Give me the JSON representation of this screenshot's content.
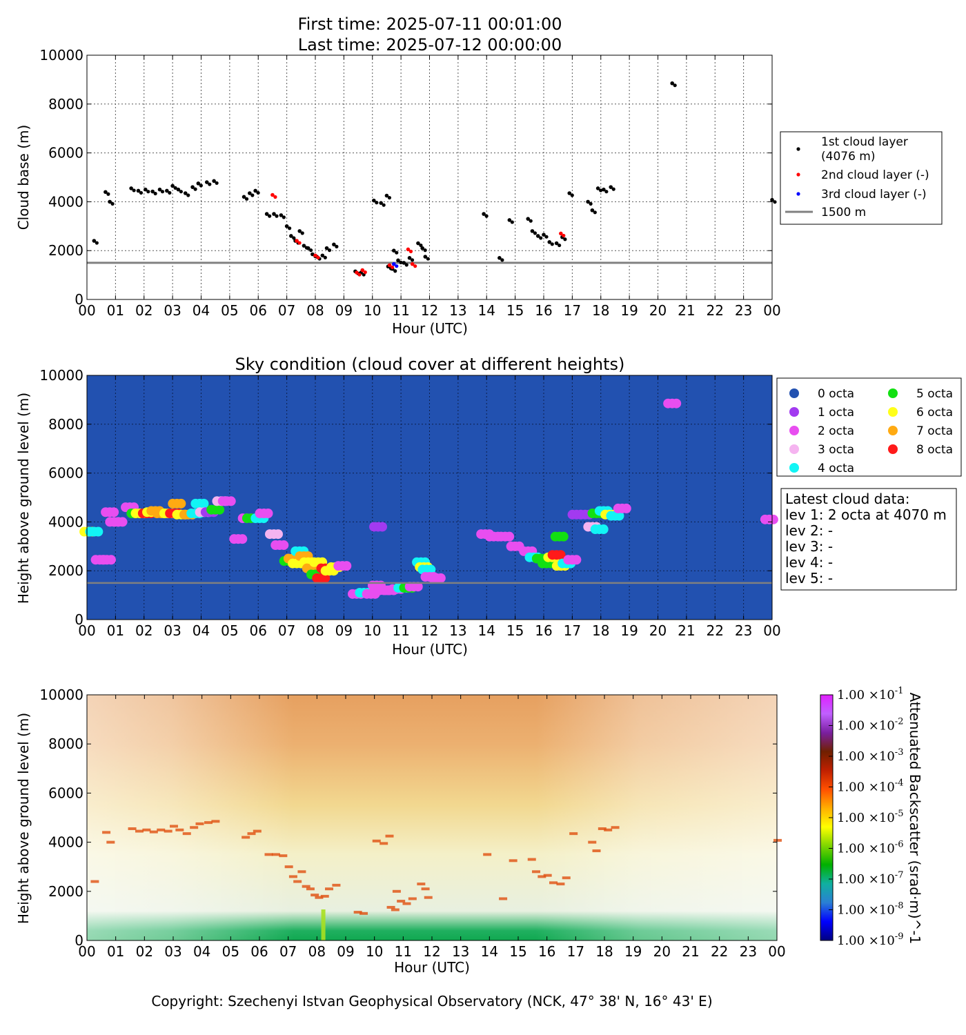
{
  "header": {
    "first_time": "First time: 2025-07-11 00:01:00",
    "last_time": "Last time: 2025-07-12 00:00:00"
  },
  "footer": {
    "copyright": "Copyright: Szechenyi Istvan Geophysical Observatory (NCK, 47° 38' N, 16° 43' E)"
  },
  "chart_data": [
    {
      "type": "scatter",
      "title": "",
      "xlabel": "Hour (UTC)",
      "ylabel": "Cloud base (m)",
      "xlim": [
        0,
        24
      ],
      "ylim": [
        0,
        10000
      ],
      "xticks": [
        "00",
        "01",
        "02",
        "03",
        "04",
        "05",
        "06",
        "07",
        "08",
        "09",
        "10",
        "11",
        "12",
        "13",
        "14",
        "15",
        "16",
        "17",
        "18",
        "19",
        "20",
        "21",
        "22",
        "23",
        "00"
      ],
      "yticks": [
        0,
        2000,
        4000,
        6000,
        8000,
        10000
      ],
      "grid": true,
      "legend_position": "right",
      "legend": [
        "1st cloud layer",
        "(4076 m)",
        "2nd cloud layer (-)",
        "3rd cloud layer (-)",
        "1500 m"
      ],
      "reference_line": {
        "y": 1500,
        "color": "#808080"
      },
      "series": [
        {
          "name": "1st cloud layer (4076 m)",
          "color": "#000000",
          "points": [
            [
              0.25,
              2400
            ],
            [
              0.65,
              4400
            ],
            [
              0.8,
              4000
            ],
            [
              1.55,
              4550
            ],
            [
              1.8,
              4450
            ],
            [
              2.05,
              4500
            ],
            [
              2.3,
              4420
            ],
            [
              2.55,
              4500
            ],
            [
              2.8,
              4450
            ],
            [
              3.0,
              4650
            ],
            [
              3.2,
              4500
            ],
            [
              3.45,
              4350
            ],
            [
              3.7,
              4600
            ],
            [
              3.9,
              4750
            ],
            [
              4.2,
              4800
            ],
            [
              4.45,
              4850
            ],
            [
              5.5,
              4200
            ],
            [
              5.7,
              4350
            ],
            [
              5.9,
              4450
            ],
            [
              6.3,
              3500
            ],
            [
              6.55,
              3500
            ],
            [
              6.8,
              3450
            ],
            [
              7.0,
              3000
            ],
            [
              7.15,
              2600
            ],
            [
              7.3,
              2400
            ],
            [
              7.45,
              2800
            ],
            [
              7.6,
              2200
            ],
            [
              7.75,
              2100
            ],
            [
              7.9,
              1850
            ],
            [
              8.05,
              1750
            ],
            [
              8.25,
              1800
            ],
            [
              8.4,
              2100
            ],
            [
              8.65,
              2250
            ],
            [
              9.4,
              1150
            ],
            [
              9.6,
              1100
            ],
            [
              10.05,
              4050
            ],
            [
              10.3,
              3950
            ],
            [
              10.5,
              4250
            ],
            [
              10.55,
              1350
            ],
            [
              10.7,
              1250
            ],
            [
              10.9,
              1600
            ],
            [
              10.75,
              2000
            ],
            [
              11.1,
              1500
            ],
            [
              11.3,
              1700
            ],
            [
              11.6,
              2300
            ],
            [
              11.75,
              2100
            ],
            [
              11.85,
              1750
            ],
            [
              13.9,
              3500
            ],
            [
              14.45,
              1700
            ],
            [
              14.8,
              3250
            ],
            [
              15.45,
              3300
            ],
            [
              15.6,
              2800
            ],
            [
              15.8,
              2600
            ],
            [
              16.0,
              2650
            ],
            [
              16.2,
              2350
            ],
            [
              16.45,
              2300
            ],
            [
              16.65,
              2550
            ],
            [
              16.9,
              4350
            ],
            [
              17.55,
              4000
            ],
            [
              17.7,
              3650
            ],
            [
              17.9,
              4550
            ],
            [
              18.1,
              4500
            ],
            [
              18.35,
              4600
            ],
            [
              20.5,
              8850
            ],
            [
              24.0,
              4076
            ]
          ]
        },
        {
          "name": "2nd cloud layer (-)",
          "color": "#ff0000",
          "points": [
            [
              6.5,
              4280
            ],
            [
              7.35,
              2400
            ],
            [
              8.0,
              1800
            ],
            [
              9.45,
              1100
            ],
            [
              9.65,
              1200
            ],
            [
              10.6,
              1400
            ],
            [
              11.25,
              2050
            ],
            [
              11.4,
              1450
            ],
            [
              16.6,
              2700
            ]
          ]
        },
        {
          "name": "3rd cloud layer (-)",
          "color": "#0000ff",
          "points": [
            [
              10.75,
              1450
            ]
          ]
        }
      ]
    },
    {
      "type": "scatter",
      "title": "Sky condition (cloud cover at different heights)",
      "xlabel": "Hour (UTC)",
      "ylabel": "Height above ground level (m)",
      "xlim": [
        0,
        24
      ],
      "ylim": [
        0,
        10000
      ],
      "xticks": [
        "00",
        "01",
        "02",
        "03",
        "04",
        "05",
        "06",
        "07",
        "08",
        "09",
        "10",
        "11",
        "12",
        "13",
        "14",
        "15",
        "16",
        "17",
        "18",
        "19",
        "20",
        "21",
        "22",
        "23",
        "00"
      ],
      "yticks": [
        0,
        2000,
        4000,
        6000,
        8000,
        10000
      ],
      "grid": true,
      "background": "#2251b0",
      "legend_position": "right",
      "reference_line": {
        "y": 1500,
        "color": "#808080"
      },
      "octa_colors": {
        "0": "#2251b0",
        "1": "#a23af0",
        "2": "#e84ef0",
        "3": "#f5b4f0",
        "4": "#12f5f5",
        "5": "#12e012",
        "6": "#ffff1a",
        "7": "#ffaa12",
        "8": "#ff1a1a"
      },
      "legend_entries": [
        {
          "label": "0 octa",
          "octa": 0
        },
        {
          "label": "1 octa",
          "octa": 1
        },
        {
          "label": "2 octa",
          "octa": 2
        },
        {
          "label": "3 octa",
          "octa": 3
        },
        {
          "label": "4 octa",
          "octa": 4
        },
        {
          "label": "5 octa",
          "octa": 5
        },
        {
          "label": "6 octa",
          "octa": 6
        },
        {
          "label": "7 octa",
          "octa": 7
        },
        {
          "label": "8 octa",
          "octa": 8
        }
      ],
      "latest_cloud_data": [
        "Latest cloud data:",
        "lev 1: 2 octa at 4070 m",
        "lev 2: -",
        "lev 3: -",
        "lev 4: -",
        "lev 5: -"
      ],
      "points": [
        [
          0.05,
          3600,
          6
        ],
        [
          0.25,
          3600,
          4
        ],
        [
          0.45,
          2450,
          2
        ],
        [
          0.7,
          2450,
          2
        ],
        [
          0.8,
          4400,
          2
        ],
        [
          0.95,
          4000,
          2
        ],
        [
          1.1,
          4000,
          2
        ],
        [
          1.5,
          4600,
          2
        ],
        [
          1.7,
          4350,
          5
        ],
        [
          1.85,
          4350,
          6
        ],
        [
          2.1,
          4350,
          8
        ],
        [
          2.25,
          4400,
          6
        ],
        [
          2.4,
          4450,
          7
        ],
        [
          2.6,
          4350,
          7
        ],
        [
          2.85,
          4350,
          6
        ],
        [
          3.05,
          4350,
          8
        ],
        [
          3.15,
          4750,
          7
        ],
        [
          3.3,
          4300,
          6
        ],
        [
          3.55,
          4300,
          7
        ],
        [
          3.8,
          4350,
          4
        ],
        [
          3.95,
          4750,
          4
        ],
        [
          4.1,
          4400,
          3
        ],
        [
          4.3,
          4400,
          1
        ],
        [
          4.5,
          4500,
          5
        ],
        [
          4.7,
          4850,
          3
        ],
        [
          4.9,
          4850,
          2
        ],
        [
          5.3,
          3300,
          2
        ],
        [
          5.6,
          4150,
          2
        ],
        [
          5.75,
          4150,
          5
        ],
        [
          6.05,
          4150,
          4
        ],
        [
          6.2,
          4350,
          2
        ],
        [
          6.55,
          3500,
          3
        ],
        [
          6.75,
          3050,
          2
        ],
        [
          7.05,
          2400,
          5
        ],
        [
          7.2,
          2500,
          7
        ],
        [
          7.35,
          2300,
          6
        ],
        [
          7.45,
          2800,
          4
        ],
        [
          7.6,
          2600,
          7
        ],
        [
          7.75,
          2350,
          6
        ],
        [
          7.85,
          2100,
          7
        ],
        [
          8.0,
          1850,
          5
        ],
        [
          8.1,
          2350,
          6
        ],
        [
          8.2,
          1700,
          8
        ],
        [
          8.35,
          2100,
          8
        ],
        [
          8.5,
          2000,
          6
        ],
        [
          8.7,
          2150,
          6
        ],
        [
          8.95,
          2200,
          2
        ],
        [
          9.45,
          1050,
          2
        ],
        [
          9.7,
          1100,
          4
        ],
        [
          9.95,
          1050,
          2
        ],
        [
          10.15,
          1400,
          2
        ],
        [
          10.4,
          1200,
          2
        ],
        [
          10.6,
          1200,
          2
        ],
        [
          10.85,
          1250,
          2
        ],
        [
          11.05,
          1300,
          4
        ],
        [
          11.25,
          1300,
          5
        ],
        [
          11.45,
          1350,
          2
        ],
        [
          11.7,
          2350,
          4
        ],
        [
          11.8,
          2150,
          6
        ],
        [
          11.9,
          2050,
          4
        ],
        [
          12.0,
          1750,
          2
        ],
        [
          12.25,
          1700,
          2
        ],
        [
          10.2,
          3800,
          1
        ],
        [
          13.95,
          3500,
          2
        ],
        [
          14.25,
          3400,
          2
        ],
        [
          14.65,
          3400,
          2
        ],
        [
          15.0,
          3000,
          2
        ],
        [
          15.45,
          2800,
          2
        ],
        [
          15.65,
          2550,
          4
        ],
        [
          15.9,
          2500,
          5
        ],
        [
          16.1,
          2300,
          5
        ],
        [
          16.3,
          2550,
          6
        ],
        [
          16.45,
          2650,
          8
        ],
        [
          16.6,
          2200,
          6
        ],
        [
          16.8,
          2300,
          4
        ],
        [
          17.0,
          2450,
          2
        ],
        [
          16.55,
          3400,
          5
        ],
        [
          17.15,
          4300,
          1
        ],
        [
          17.45,
          4300,
          1
        ],
        [
          17.7,
          3800,
          3
        ],
        [
          17.85,
          4350,
          5
        ],
        [
          17.95,
          3700,
          4
        ],
        [
          18.1,
          4450,
          4
        ],
        [
          18.3,
          4300,
          6
        ],
        [
          18.5,
          4250,
          4
        ],
        [
          18.75,
          4550,
          2
        ],
        [
          20.5,
          8850,
          2
        ],
        [
          23.9,
          4100,
          2
        ]
      ]
    },
    {
      "type": "heatmap",
      "title": "",
      "xlabel": "Hour (UTC)",
      "ylabel": "Height above ground level (m)",
      "xlim": [
        0,
        24
      ],
      "ylim": [
        0,
        10000
      ],
      "xticks": [
        "00",
        "01",
        "02",
        "03",
        "04",
        "05",
        "06",
        "07",
        "08",
        "09",
        "10",
        "11",
        "12",
        "13",
        "14",
        "15",
        "16",
        "17",
        "18",
        "19",
        "20",
        "21",
        "22",
        "23",
        "00"
      ],
      "yticks": [
        0,
        2000,
        4000,
        6000,
        8000,
        10000
      ],
      "grid": false,
      "colorbar_label": "Attenuated Backscatter (srad·m)^-1",
      "colorbar_scale": "log",
      "colorbar_range": [
        1e-09,
        0.1
      ],
      "colorbar_ticks": [
        {
          "mant": "1.00",
          "exp": "-1"
        },
        {
          "mant": "1.00",
          "exp": "-2"
        },
        {
          "mant": "1.00",
          "exp": "-3"
        },
        {
          "mant": "1.00",
          "exp": "-4"
        },
        {
          "mant": "1.00",
          "exp": "-5"
        },
        {
          "mant": "1.00",
          "exp": "-6"
        },
        {
          "mant": "1.00",
          "exp": "-7"
        },
        {
          "mant": "1.00",
          "exp": "-8"
        },
        {
          "mant": "1.00",
          "exp": "-9"
        }
      ],
      "colorbar_colors": [
        "#000080",
        "#0000ff",
        "#2a7fd4",
        "#10b0a0",
        "#00b000",
        "#7ed500",
        "#ffff00",
        "#ffb000",
        "#ff5000",
        "#c02000",
        "#702000",
        "#7a1fa0",
        "#c060ff",
        "#e020ff"
      ]
    }
  ]
}
